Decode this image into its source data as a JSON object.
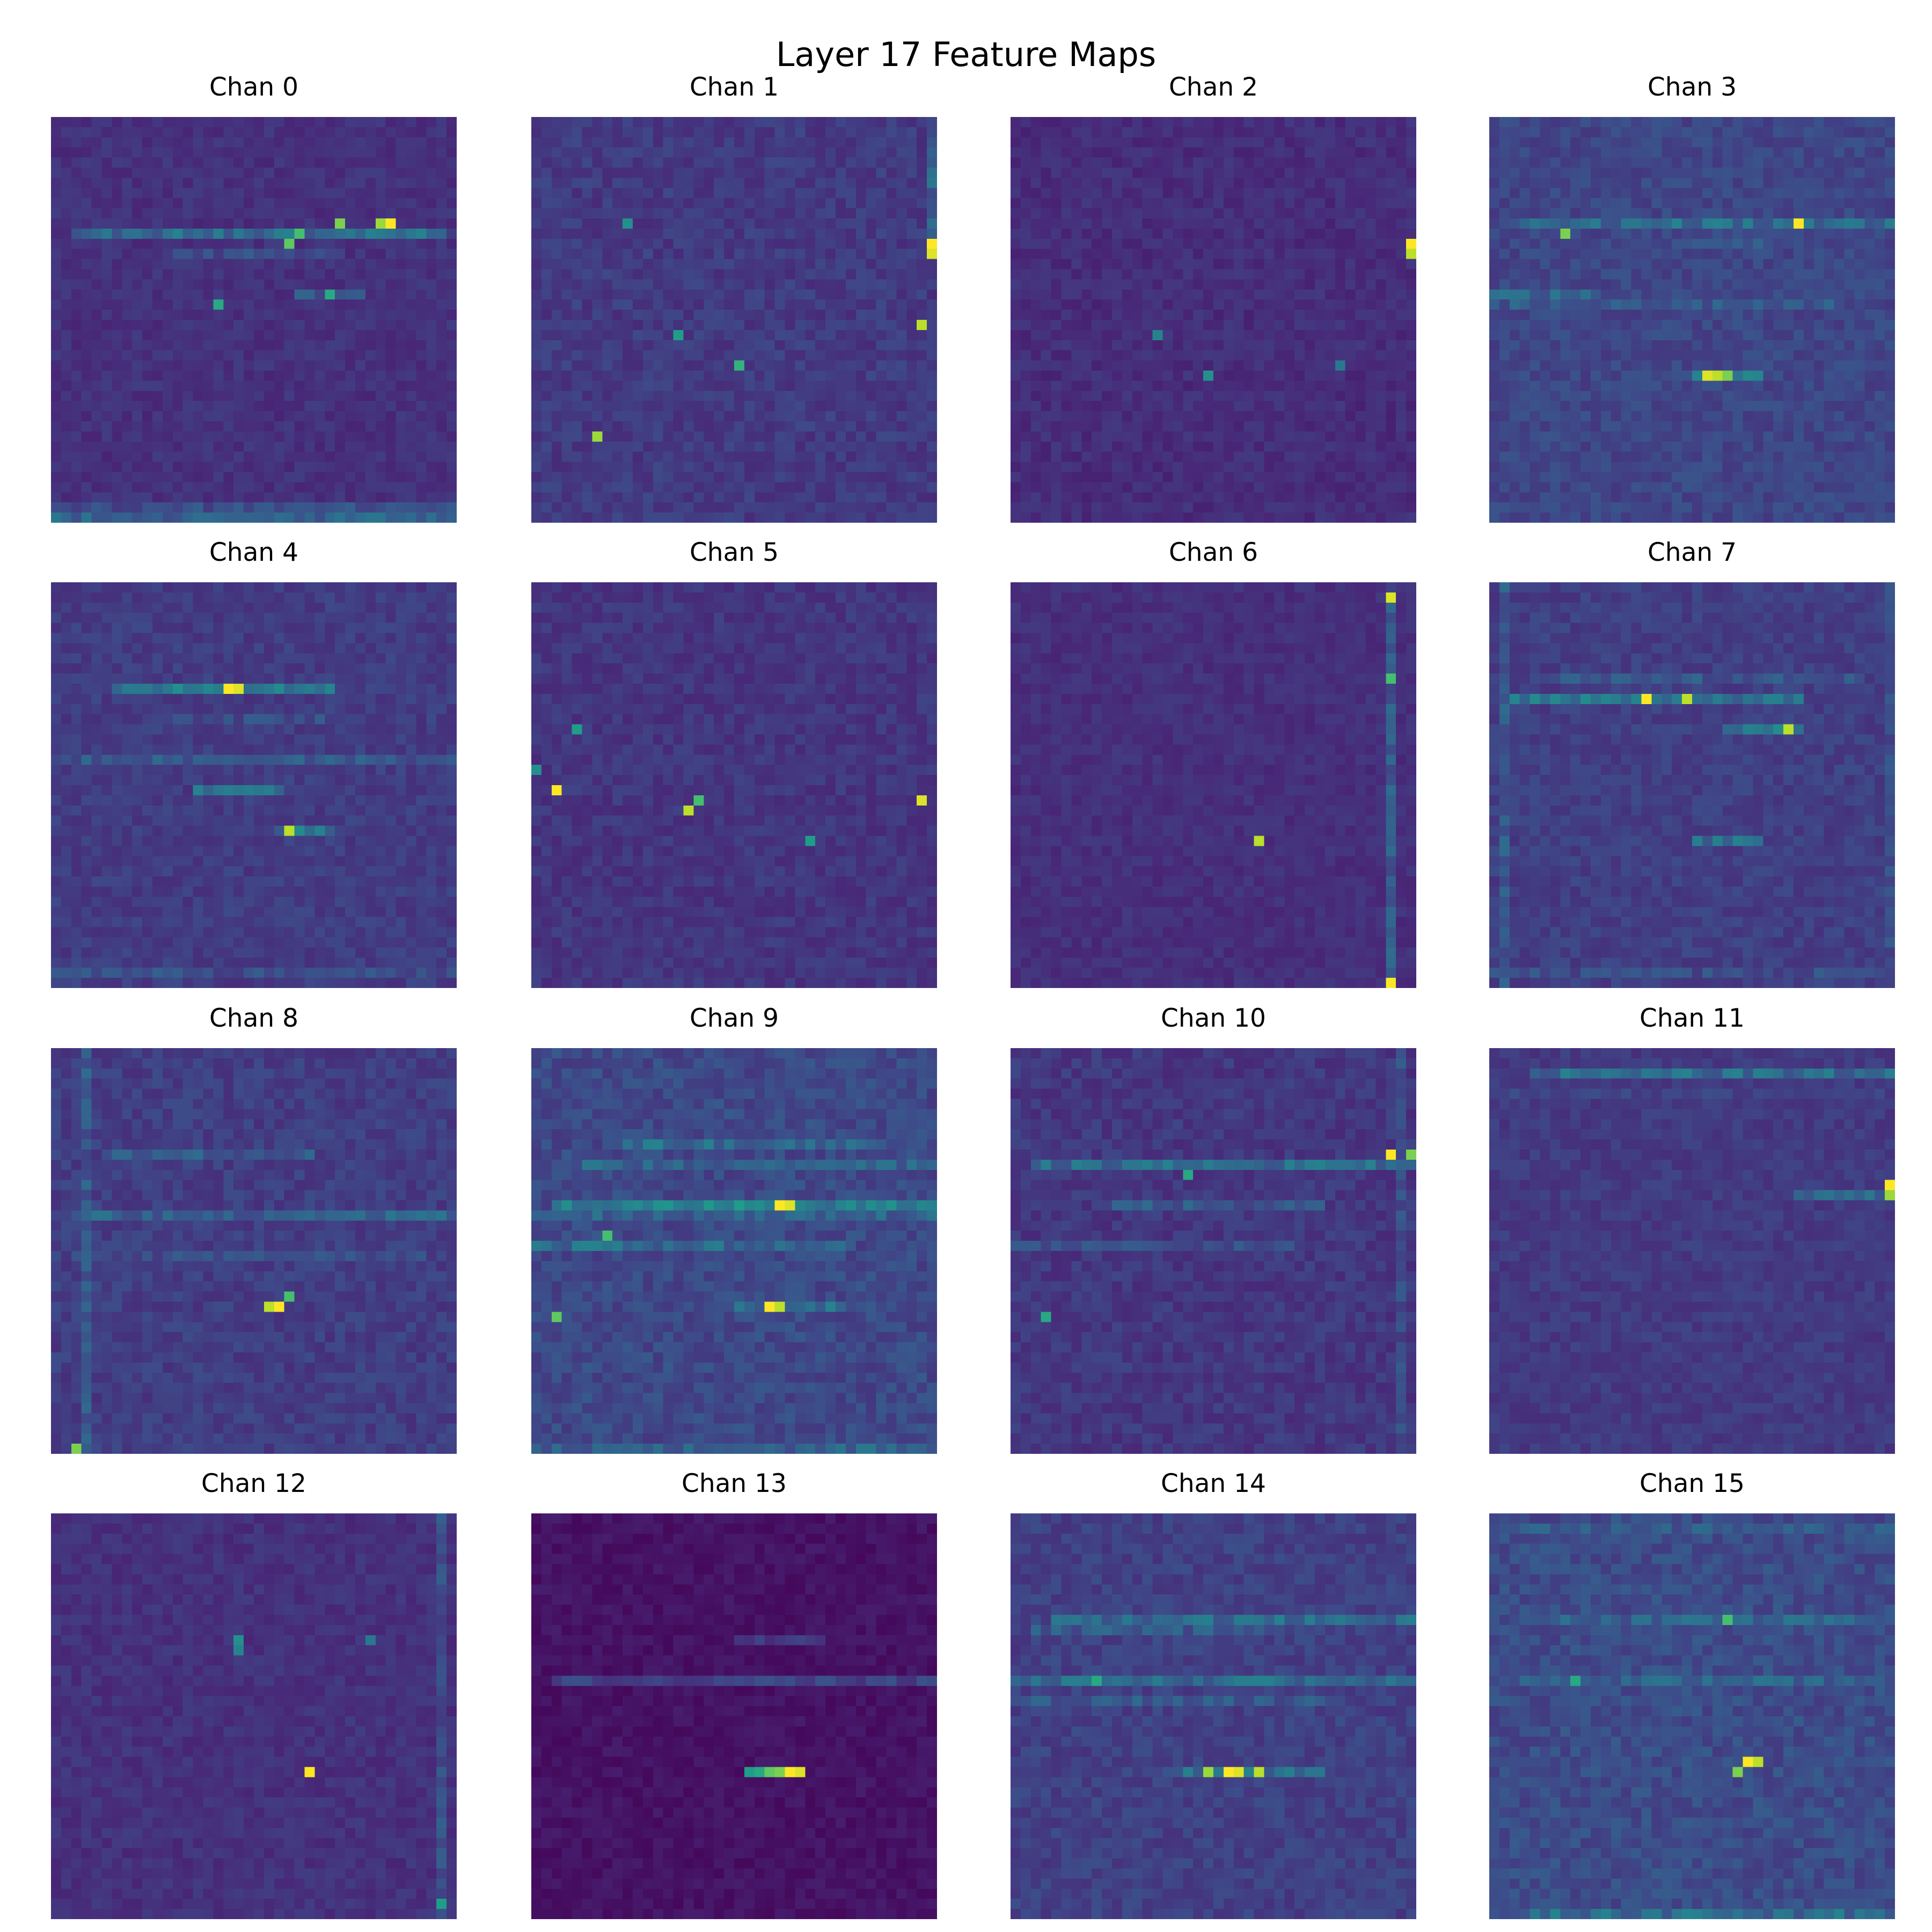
{
  "title": "Layer 17 Feature Maps",
  "colormap": "viridis",
  "colors": {
    "low": "#440154",
    "mid": "#21908d",
    "high": "#fde725"
  },
  "chart_data": [
    {
      "type": "heatmap",
      "title": "Chan 0",
      "grid": [
        40,
        40
      ],
      "seed": 11,
      "base": 0.1,
      "noise": 0.08,
      "hlines": [
        {
          "row": 11,
          "from": 2,
          "to": 38,
          "level": 0.45
        },
        {
          "row": 13,
          "from": 12,
          "to": 28,
          "level": 0.3
        },
        {
          "row": 17,
          "from": 24,
          "to": 30,
          "level": 0.35
        },
        {
          "row": 38,
          "from": 0,
          "to": 39,
          "level": 0.3
        },
        {
          "row": 39,
          "from": 0,
          "to": 39,
          "level": 0.4
        }
      ],
      "hotspots": [
        {
          "r": 10,
          "c": 33,
          "v": 1.0
        },
        {
          "r": 10,
          "c": 32,
          "v": 0.85
        },
        {
          "r": 10,
          "c": 28,
          "v": 0.8
        },
        {
          "r": 11,
          "c": 24,
          "v": 0.7
        },
        {
          "r": 12,
          "c": 23,
          "v": 0.75
        },
        {
          "r": 18,
          "c": 16,
          "v": 0.6
        },
        {
          "r": 17,
          "c": 27,
          "v": 0.6
        }
      ]
    },
    {
      "type": "heatmap",
      "title": "Chan 1",
      "grid": [
        40,
        40
      ],
      "seed": 23,
      "base": 0.12,
      "noise": 0.1,
      "vlines": [
        {
          "col": 39,
          "from": 2,
          "to": 12,
          "level": 0.4
        }
      ],
      "hotspots": [
        {
          "r": 12,
          "c": 39,
          "v": 1.0
        },
        {
          "r": 13,
          "c": 39,
          "v": 0.95
        },
        {
          "r": 20,
          "c": 38,
          "v": 0.9
        },
        {
          "r": 31,
          "c": 6,
          "v": 0.85
        },
        {
          "r": 24,
          "c": 20,
          "v": 0.65
        },
        {
          "r": 21,
          "c": 14,
          "v": 0.55
        },
        {
          "r": 10,
          "c": 9,
          "v": 0.5
        }
      ]
    },
    {
      "type": "heatmap",
      "title": "Chan 2",
      "grid": [
        40,
        40
      ],
      "seed": 37,
      "base": 0.09,
      "noise": 0.08,
      "hotspots": [
        {
          "r": 12,
          "c": 39,
          "v": 1.0
        },
        {
          "r": 13,
          "c": 39,
          "v": 0.9
        },
        {
          "r": 25,
          "c": 19,
          "v": 0.5
        },
        {
          "r": 21,
          "c": 14,
          "v": 0.45
        },
        {
          "r": 24,
          "c": 32,
          "v": 0.4
        }
      ]
    },
    {
      "type": "heatmap",
      "title": "Chan 3",
      "grid": [
        40,
        40
      ],
      "seed": 41,
      "base": 0.16,
      "noise": 0.1,
      "hlines": [
        {
          "row": 10,
          "from": 2,
          "to": 39,
          "level": 0.45
        },
        {
          "row": 12,
          "from": 20,
          "to": 26,
          "level": 0.35
        },
        {
          "row": 17,
          "from": 0,
          "to": 10,
          "level": 0.4
        },
        {
          "row": 18,
          "from": 0,
          "to": 34,
          "level": 0.35
        },
        {
          "row": 25,
          "from": 20,
          "to": 26,
          "level": 0.5
        }
      ],
      "hotspots": [
        {
          "r": 10,
          "c": 30,
          "v": 1.0
        },
        {
          "r": 11,
          "c": 7,
          "v": 0.8
        },
        {
          "r": 25,
          "c": 21,
          "v": 0.95
        },
        {
          "r": 25,
          "c": 22,
          "v": 0.9
        },
        {
          "r": 25,
          "c": 23,
          "v": 0.8
        }
      ]
    },
    {
      "type": "heatmap",
      "title": "Chan 4",
      "grid": [
        40,
        40
      ],
      "seed": 53,
      "base": 0.13,
      "noise": 0.09,
      "hlines": [
        {
          "row": 10,
          "from": 6,
          "to": 27,
          "level": 0.5
        },
        {
          "row": 13,
          "from": 10,
          "to": 30,
          "level": 0.3
        },
        {
          "row": 17,
          "from": 0,
          "to": 39,
          "level": 0.35
        },
        {
          "row": 20,
          "from": 14,
          "to": 22,
          "level": 0.45
        },
        {
          "row": 24,
          "from": 22,
          "to": 27,
          "level": 0.5
        },
        {
          "row": 38,
          "from": 0,
          "to": 39,
          "level": 0.3
        }
      ],
      "hotspots": [
        {
          "r": 10,
          "c": 17,
          "v": 1.0
        },
        {
          "r": 10,
          "c": 18,
          "v": 0.95
        },
        {
          "r": 24,
          "c": 23,
          "v": 0.9
        }
      ]
    },
    {
      "type": "heatmap",
      "title": "Chan 5",
      "grid": [
        40,
        40
      ],
      "seed": 67,
      "base": 0.11,
      "noise": 0.09,
      "hotspots": [
        {
          "r": 20,
          "c": 2,
          "v": 1.0
        },
        {
          "r": 21,
          "c": 38,
          "v": 0.95
        },
        {
          "r": 22,
          "c": 15,
          "v": 0.9
        },
        {
          "r": 21,
          "c": 16,
          "v": 0.7
        },
        {
          "r": 14,
          "c": 4,
          "v": 0.55
        },
        {
          "r": 25,
          "c": 27,
          "v": 0.55
        },
        {
          "r": 18,
          "c": 0,
          "v": 0.5
        }
      ]
    },
    {
      "type": "heatmap",
      "title": "Chan 6",
      "grid": [
        40,
        40
      ],
      "seed": 71,
      "base": 0.1,
      "noise": 0.07,
      "vlines": [
        {
          "col": 37,
          "from": 0,
          "to": 39,
          "level": 0.35
        }
      ],
      "hotspots": [
        {
          "r": 1,
          "c": 37,
          "v": 0.95
        },
        {
          "r": 39,
          "c": 37,
          "v": 1.0
        },
        {
          "r": 25,
          "c": 24,
          "v": 0.9
        },
        {
          "r": 9,
          "c": 37,
          "v": 0.7
        }
      ]
    },
    {
      "type": "heatmap",
      "title": "Chan 7",
      "grid": [
        40,
        40
      ],
      "seed": 83,
      "base": 0.14,
      "noise": 0.09,
      "vlines": [
        {
          "col": 1,
          "from": 0,
          "to": 39,
          "level": 0.35
        },
        {
          "col": 39,
          "from": 0,
          "to": 39,
          "level": 0.3
        }
      ],
      "hlines": [
        {
          "row": 9,
          "from": 6,
          "to": 36,
          "level": 0.35
        },
        {
          "row": 11,
          "from": 2,
          "to": 30,
          "level": 0.5
        },
        {
          "row": 14,
          "from": 23,
          "to": 30,
          "level": 0.5
        },
        {
          "row": 25,
          "from": 20,
          "to": 26,
          "level": 0.45
        },
        {
          "row": 38,
          "from": 0,
          "to": 39,
          "level": 0.3
        }
      ],
      "hotspots": [
        {
          "r": 11,
          "c": 15,
          "v": 1.0
        },
        {
          "r": 11,
          "c": 19,
          "v": 0.9
        },
        {
          "r": 14,
          "c": 29,
          "v": 0.9
        }
      ]
    },
    {
      "type": "heatmap",
      "title": "Chan 8",
      "grid": [
        40,
        40
      ],
      "seed": 97,
      "base": 0.13,
      "noise": 0.1,
      "vlines": [
        {
          "col": 3,
          "from": 0,
          "to": 39,
          "level": 0.35
        }
      ],
      "hlines": [
        {
          "row": 10,
          "from": 5,
          "to": 25,
          "level": 0.35
        },
        {
          "row": 16,
          "from": 2,
          "to": 39,
          "level": 0.4
        },
        {
          "row": 20,
          "from": 2,
          "to": 36,
          "level": 0.3
        }
      ],
      "hotspots": [
        {
          "r": 25,
          "c": 22,
          "v": 1.0
        },
        {
          "r": 25,
          "c": 21,
          "v": 0.9
        },
        {
          "r": 24,
          "c": 23,
          "v": 0.7
        },
        {
          "r": 39,
          "c": 2,
          "v": 0.8
        }
      ]
    },
    {
      "type": "heatmap",
      "title": "Chan 9",
      "grid": [
        40,
        40
      ],
      "seed": 101,
      "base": 0.16,
      "noise": 0.12,
      "hlines": [
        {
          "row": 9,
          "from": 8,
          "to": 34,
          "level": 0.45
        },
        {
          "row": 11,
          "from": 5,
          "to": 39,
          "level": 0.4
        },
        {
          "row": 15,
          "from": 2,
          "to": 39,
          "level": 0.55
        },
        {
          "row": 16,
          "from": 0,
          "to": 39,
          "level": 0.4
        },
        {
          "row": 19,
          "from": 0,
          "to": 30,
          "level": 0.45
        },
        {
          "row": 25,
          "from": 20,
          "to": 30,
          "level": 0.45
        },
        {
          "row": 39,
          "from": 0,
          "to": 39,
          "level": 0.4
        }
      ],
      "hotspots": [
        {
          "r": 15,
          "c": 24,
          "v": 1.0
        },
        {
          "r": 15,
          "c": 25,
          "v": 0.95
        },
        {
          "r": 25,
          "c": 23,
          "v": 1.0
        },
        {
          "r": 25,
          "c": 24,
          "v": 0.9
        },
        {
          "r": 26,
          "c": 2,
          "v": 0.75
        },
        {
          "r": 18,
          "c": 7,
          "v": 0.7
        }
      ]
    },
    {
      "type": "heatmap",
      "title": "Chan 10",
      "grid": [
        40,
        40
      ],
      "seed": 113,
      "base": 0.11,
      "noise": 0.1,
      "vlines": [
        {
          "col": 38,
          "from": 0,
          "to": 39,
          "level": 0.3
        }
      ],
      "hlines": [
        {
          "row": 11,
          "from": 2,
          "to": 39,
          "level": 0.45
        },
        {
          "row": 15,
          "from": 10,
          "to": 30,
          "level": 0.35
        },
        {
          "row": 19,
          "from": 0,
          "to": 28,
          "level": 0.3
        }
      ],
      "hotspots": [
        {
          "r": 10,
          "c": 37,
          "v": 1.0
        },
        {
          "r": 10,
          "c": 39,
          "v": 0.8
        },
        {
          "r": 12,
          "c": 17,
          "v": 0.6
        },
        {
          "r": 26,
          "c": 3,
          "v": 0.6
        }
      ]
    },
    {
      "type": "heatmap",
      "title": "Chan 11",
      "grid": [
        40,
        40
      ],
      "seed": 127,
      "base": 0.13,
      "noise": 0.08,
      "hlines": [
        {
          "row": 2,
          "from": 4,
          "to": 39,
          "level": 0.45
        },
        {
          "row": 4,
          "from": 0,
          "to": 39,
          "level": 0.25
        },
        {
          "row": 14,
          "from": 30,
          "to": 39,
          "level": 0.4
        }
      ],
      "hotspots": [
        {
          "r": 13,
          "c": 39,
          "v": 1.0
        },
        {
          "r": 14,
          "c": 39,
          "v": 0.85
        }
      ]
    },
    {
      "type": "heatmap",
      "title": "Chan 12",
      "grid": [
        40,
        40
      ],
      "seed": 131,
      "base": 0.1,
      "noise": 0.08,
      "vlines": [
        {
          "col": 38,
          "from": 0,
          "to": 39,
          "level": 0.3
        }
      ],
      "hotspots": [
        {
          "r": 25,
          "c": 25,
          "v": 1.0
        },
        {
          "r": 12,
          "c": 18,
          "v": 0.5
        },
        {
          "r": 13,
          "c": 18,
          "v": 0.45
        },
        {
          "r": 12,
          "c": 31,
          "v": 0.4
        },
        {
          "r": 38,
          "c": 38,
          "v": 0.55
        }
      ]
    },
    {
      "type": "heatmap",
      "title": "Chan 13",
      "grid": [
        40,
        40
      ],
      "seed": 139,
      "base": 0.02,
      "noise": 0.06,
      "hlines": [
        {
          "row": 12,
          "from": 20,
          "to": 28,
          "level": 0.2
        },
        {
          "row": 16,
          "from": 2,
          "to": 39,
          "level": 0.25
        }
      ],
      "hotspots": [
        {
          "r": 25,
          "c": 25,
          "v": 1.0
        },
        {
          "r": 25,
          "c": 26,
          "v": 0.95
        },
        {
          "r": 25,
          "c": 24,
          "v": 0.8
        },
        {
          "r": 25,
          "c": 23,
          "v": 0.75
        },
        {
          "r": 25,
          "c": 22,
          "v": 0.6
        },
        {
          "r": 25,
          "c": 21,
          "v": 0.55
        }
      ]
    },
    {
      "type": "heatmap",
      "title": "Chan 14",
      "grid": [
        40,
        40
      ],
      "seed": 149,
      "base": 0.14,
      "noise": 0.1,
      "hlines": [
        {
          "row": 10,
          "from": 4,
          "to": 39,
          "level": 0.45
        },
        {
          "row": 11,
          "from": 2,
          "to": 24,
          "level": 0.35
        },
        {
          "row": 16,
          "from": 0,
          "to": 39,
          "level": 0.45
        },
        {
          "row": 18,
          "from": 0,
          "to": 30,
          "level": 0.35
        },
        {
          "row": 25,
          "from": 15,
          "to": 30,
          "level": 0.45
        }
      ],
      "hotspots": [
        {
          "r": 25,
          "c": 21,
          "v": 1.0
        },
        {
          "r": 25,
          "c": 22,
          "v": 0.95
        },
        {
          "r": 25,
          "c": 24,
          "v": 0.9
        },
        {
          "r": 25,
          "c": 19,
          "v": 0.85
        },
        {
          "r": 16,
          "c": 8,
          "v": 0.6
        }
      ]
    },
    {
      "type": "heatmap",
      "title": "Chan 15",
      "grid": [
        40,
        40
      ],
      "seed": 157,
      "base": 0.17,
      "noise": 0.12,
      "hlines": [
        {
          "row": 1,
          "from": 0,
          "to": 39,
          "level": 0.35
        },
        {
          "row": 10,
          "from": 4,
          "to": 36,
          "level": 0.4
        },
        {
          "row": 16,
          "from": 2,
          "to": 39,
          "level": 0.4
        },
        {
          "row": 39,
          "from": 4,
          "to": 39,
          "level": 0.45
        }
      ],
      "hotspots": [
        {
          "r": 24,
          "c": 25,
          "v": 1.0
        },
        {
          "r": 24,
          "c": 26,
          "v": 0.9
        },
        {
          "r": 25,
          "c": 24,
          "v": 0.8
        },
        {
          "r": 10,
          "c": 23,
          "v": 0.7
        },
        {
          "r": 16,
          "c": 8,
          "v": 0.6
        }
      ]
    }
  ]
}
